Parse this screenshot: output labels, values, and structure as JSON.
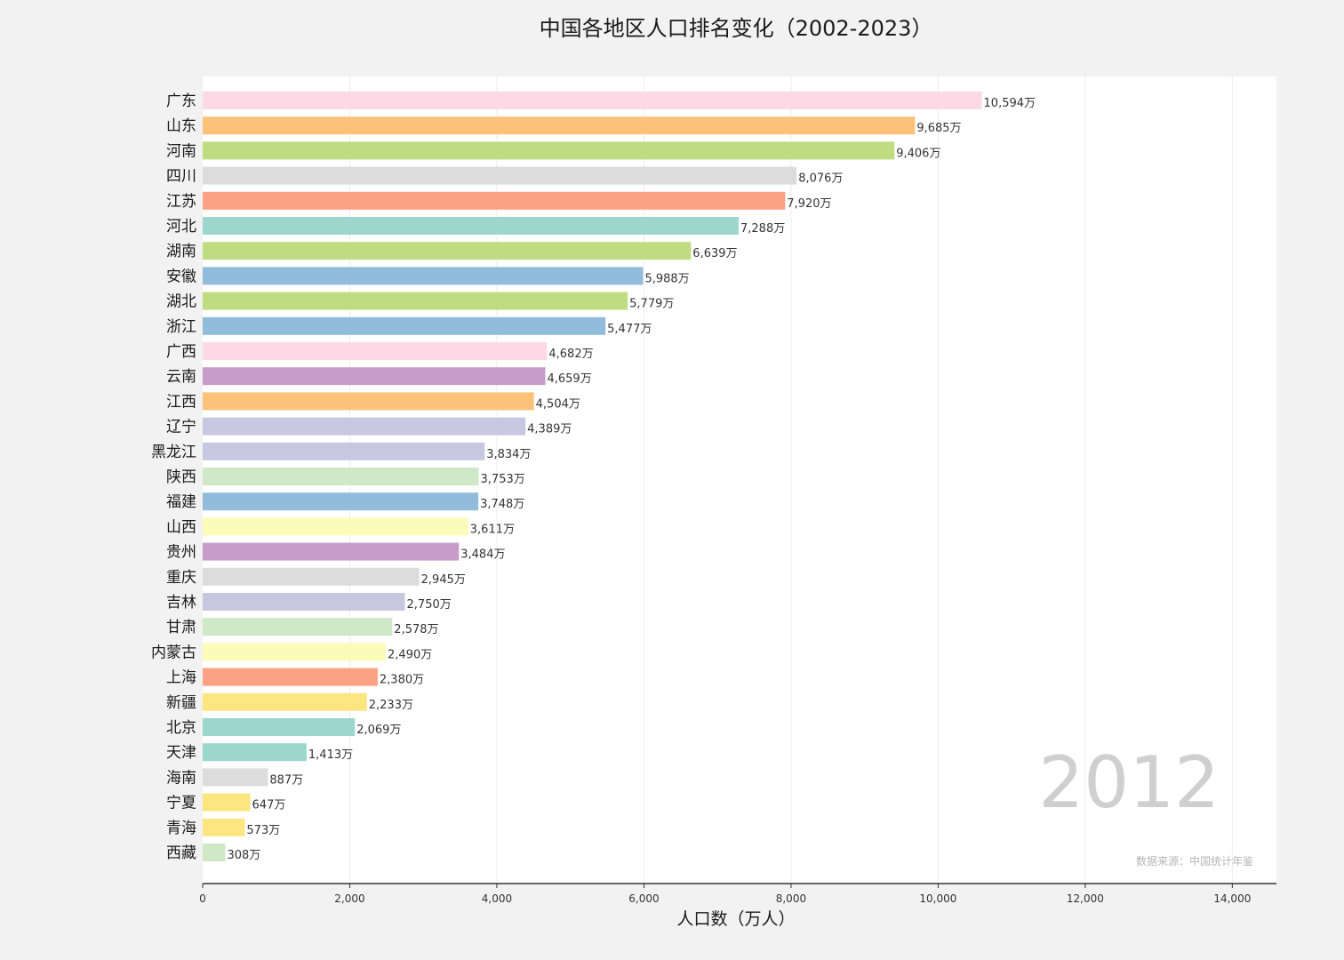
{
  "chart_data": {
    "type": "bar",
    "orientation": "horizontal",
    "title": "中国各地区人口排名变化（2002-2023）",
    "xlabel": "人口数（万人）",
    "xlim": [
      0,
      14600
    ],
    "xticks": [
      0,
      2000,
      4000,
      6000,
      8000,
      10000,
      12000,
      14000
    ],
    "xtick_labels": [
      "0",
      "2,000",
      "4,000",
      "6,000",
      "8,000",
      "10,000",
      "12,000",
      "14,000"
    ],
    "grid": "vertical",
    "year": "2012",
    "source": "数据来源：中国统计年鉴",
    "unit_suffix": "万",
    "bars": [
      {
        "category": "广东",
        "value": 10594,
        "label": "10,594万",
        "color": "#fcd9e5"
      },
      {
        "category": "山东",
        "value": 9685,
        "label": "9,685万",
        "color": "#fdc27a"
      },
      {
        "category": "河南",
        "value": 9406,
        "label": "9,406万",
        "color": "#bfdd80"
      },
      {
        "category": "四川",
        "value": 8076,
        "label": "8,076万",
        "color": "#dcdcdc"
      },
      {
        "category": "江苏",
        "value": 7920,
        "label": "7,920万",
        "color": "#fca183"
      },
      {
        "category": "河北",
        "value": 7288,
        "label": "7,288万",
        "color": "#9dd6ce"
      },
      {
        "category": "湖南",
        "value": 6639,
        "label": "6,639万",
        "color": "#bfdd80"
      },
      {
        "category": "安徽",
        "value": 5988,
        "label": "5,988万",
        "color": "#92bcdc"
      },
      {
        "category": "湖北",
        "value": 5779,
        "label": "5,779万",
        "color": "#bfdd80"
      },
      {
        "category": "浙江",
        "value": 5477,
        "label": "5,477万",
        "color": "#92bcdc"
      },
      {
        "category": "广西",
        "value": 4682,
        "label": "4,682万",
        "color": "#fcd9e5"
      },
      {
        "category": "云南",
        "value": 4659,
        "label": "4,659万",
        "color": "#c79cc8"
      },
      {
        "category": "江西",
        "value": 4504,
        "label": "4,504万",
        "color": "#fdc27a"
      },
      {
        "category": "辽宁",
        "value": 4389,
        "label": "4,389万",
        "color": "#c7c8e0"
      },
      {
        "category": "黑龙江",
        "value": 3834,
        "label": "3,834万",
        "color": "#c7c8e0"
      },
      {
        "category": "陕西",
        "value": 3753,
        "label": "3,753万",
        "color": "#cfe9c8"
      },
      {
        "category": "福建",
        "value": 3748,
        "label": "3,748万",
        "color": "#92bcdc"
      },
      {
        "category": "山西",
        "value": 3611,
        "label": "3,611万",
        "color": "#fdfbb8"
      },
      {
        "category": "贵州",
        "value": 3484,
        "label": "3,484万",
        "color": "#c79cc8"
      },
      {
        "category": "重庆",
        "value": 2945,
        "label": "2,945万",
        "color": "#dcdcdc"
      },
      {
        "category": "吉林",
        "value": 2750,
        "label": "2,750万",
        "color": "#c7c8e0"
      },
      {
        "category": "甘肃",
        "value": 2578,
        "label": "2,578万",
        "color": "#cfe9c8"
      },
      {
        "category": "内蒙古",
        "value": 2490,
        "label": "2,490万",
        "color": "#fdfbb8"
      },
      {
        "category": "上海",
        "value": 2380,
        "label": "2,380万",
        "color": "#fca183"
      },
      {
        "category": "新疆",
        "value": 2233,
        "label": "2,233万",
        "color": "#fde680"
      },
      {
        "category": "北京",
        "value": 2069,
        "label": "2,069万",
        "color": "#9dd6ce"
      },
      {
        "category": "天津",
        "value": 1413,
        "label": "1,413万",
        "color": "#9dd6ce"
      },
      {
        "category": "海南",
        "value": 887,
        "label": "887万",
        "color": "#dcdcdc"
      },
      {
        "category": "宁夏",
        "value": 647,
        "label": "647万",
        "color": "#fde680"
      },
      {
        "category": "青海",
        "value": 573,
        "label": "573万",
        "color": "#fde680"
      },
      {
        "category": "西藏",
        "value": 308,
        "label": "308万",
        "color": "#cfe9c8"
      }
    ]
  }
}
